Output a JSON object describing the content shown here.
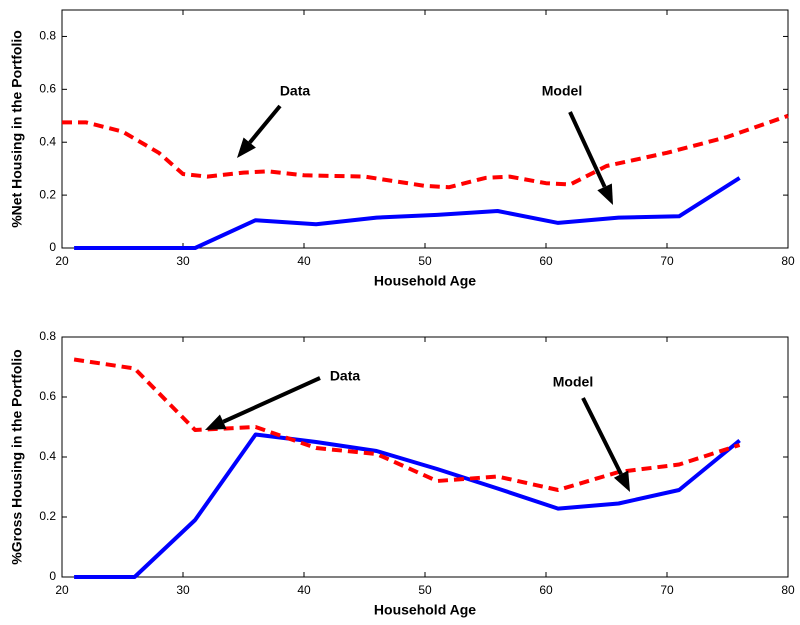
{
  "chart_data": [
    {
      "type": "line",
      "xlabel": "Household Age",
      "ylabel": "%Net Housing in the Portfolio",
      "xlim": [
        20,
        80
      ],
      "ylim": [
        0,
        0.9
      ],
      "xticks": [
        20,
        30,
        40,
        50,
        60,
        70,
        80
      ],
      "yticks": [
        0,
        0.2,
        0.4,
        0.6,
        0.8
      ],
      "series": [
        {
          "color": "#0000ff",
          "dash": false,
          "x": [
            21,
            26,
            31,
            36,
            41,
            46,
            51,
            56,
            61,
            66,
            71,
            76
          ],
          "values": [
            0,
            0,
            0,
            0.105,
            0.09,
            0.115,
            0.125,
            0.14,
            0.095,
            0.115,
            0.12,
            0.265
          ]
        },
        {
          "color": "#ff0000",
          "dash": true,
          "x": [
            20,
            22,
            25,
            28,
            30,
            32,
            35,
            37,
            40,
            45,
            50,
            52,
            55,
            57,
            60,
            62,
            65,
            70,
            75,
            80
          ],
          "values": [
            0.475,
            0.475,
            0.44,
            0.36,
            0.28,
            0.27,
            0.285,
            0.29,
            0.275,
            0.27,
            0.235,
            0.23,
            0.265,
            0.27,
            0.245,
            0.24,
            0.31,
            0.36,
            0.42,
            0.5
          ]
        }
      ],
      "annotations": [
        {
          "text": "Data"
        },
        {
          "text": "Model"
        }
      ]
    },
    {
      "type": "line",
      "xlabel": "Household Age",
      "ylabel": "%Gross Housing in the Portfolio",
      "xlim": [
        20,
        80
      ],
      "ylim": [
        0,
        0.8
      ],
      "xticks": [
        20,
        30,
        40,
        50,
        60,
        70,
        80
      ],
      "yticks": [
        0,
        0.2,
        0.4,
        0.6,
        0.8
      ],
      "series": [
        {
          "color": "#0000ff",
          "dash": false,
          "x": [
            21,
            26,
            31,
            36,
            41,
            46,
            51,
            56,
            61,
            66,
            71,
            76
          ],
          "values": [
            0,
            0,
            0.19,
            0.475,
            0.45,
            0.42,
            0.36,
            0.295,
            0.228,
            0.245,
            0.29,
            0.455
          ]
        },
        {
          "color": "#ff0000",
          "dash": true,
          "x": [
            21,
            26,
            31,
            36,
            41,
            46,
            51,
            56,
            61,
            66,
            71,
            76
          ],
          "values": [
            0.725,
            0.695,
            0.49,
            0.5,
            0.43,
            0.41,
            0.32,
            0.335,
            0.29,
            0.35,
            0.375,
            0.44
          ]
        }
      ],
      "annotations": [
        {
          "text": "Data"
        },
        {
          "text": "Model"
        }
      ]
    }
  ]
}
